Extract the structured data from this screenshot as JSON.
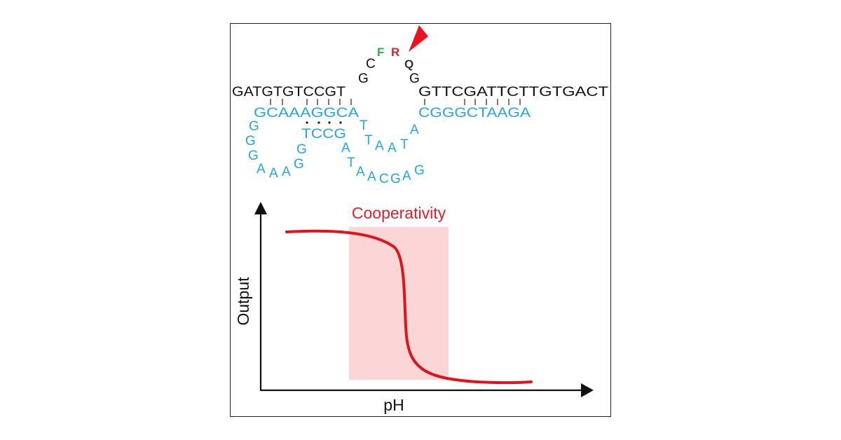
{
  "strand": {
    "left": "GATGTGTCCGT",
    "loop": [
      "G",
      "C",
      "F",
      "R",
      "Q",
      "G"
    ],
    "right": "GTTCGATTCTTGTGACT"
  },
  "dnazyme": {
    "left_arm": "GCAAAGGCA",
    "right_arm": "CGGGCTAAGA",
    "stem": "TCCG",
    "left_loop": [
      "G",
      "G",
      "G",
      "A",
      "A",
      "A",
      "G",
      "G"
    ],
    "catalytic_loop_1": [
      "T",
      "T",
      "A",
      "A",
      "T",
      "A"
    ],
    "catalytic_loop_2": [
      "A",
      "T",
      "A",
      "A",
      "C",
      "G",
      "A",
      "G"
    ]
  },
  "plot": {
    "title": "Cooperativity",
    "xlabel": "pH",
    "ylabel": "Output"
  },
  "colors": {
    "strand": "#111111",
    "dnazyme": "#29a3dc",
    "fluorophore": "#2fa84f",
    "ribo": "#e0212b",
    "quencher": "#333333",
    "cleavage_marker": "#e8131c",
    "curve": "#e0131c",
    "highlight": "#fcd5d6"
  }
}
